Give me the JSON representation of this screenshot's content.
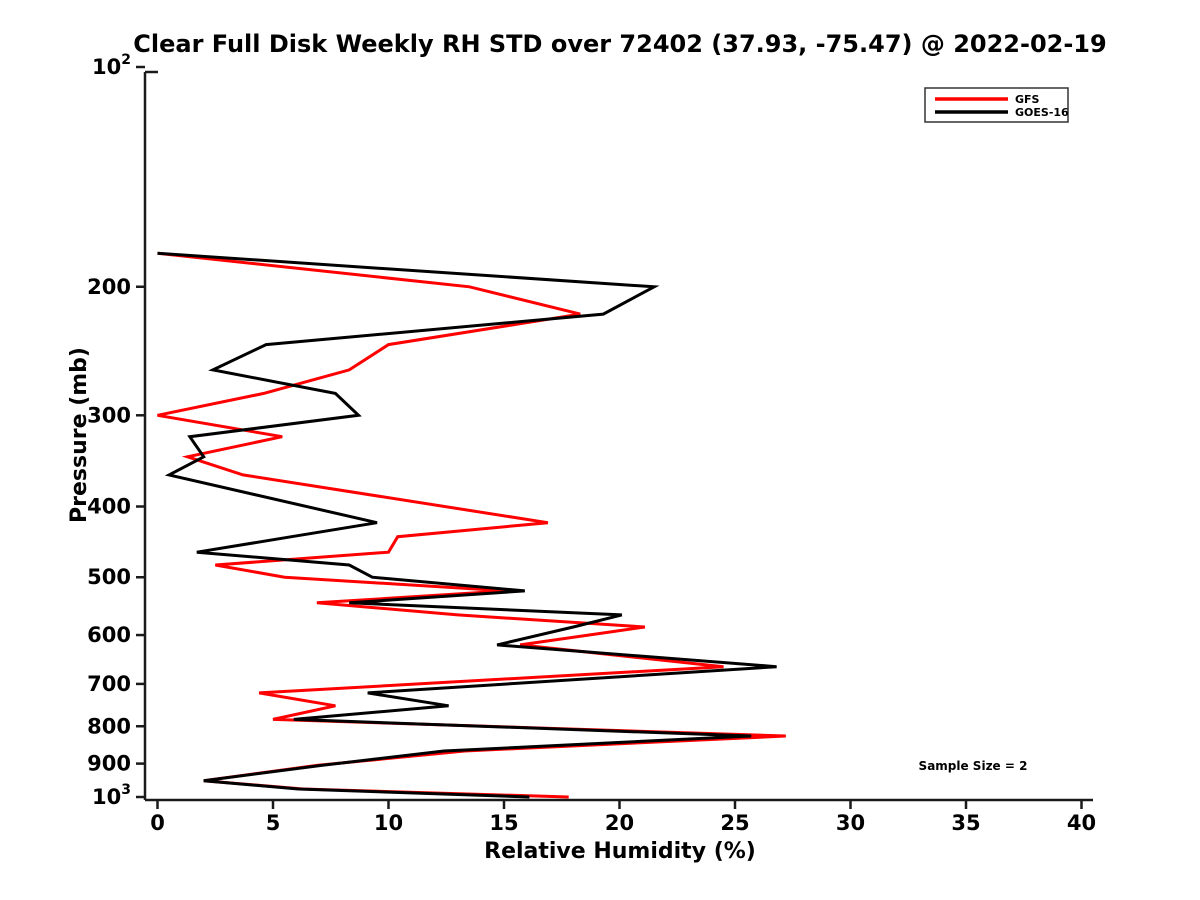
{
  "title": "Clear Full Disk Weekly RH STD over 72402 (37.93, -75.47) @ 2022-02-19",
  "annotation": "Sample Size = 2",
  "chart_data": {
    "type": "line",
    "title": "Clear Full Disk Weekly RH STD over 72402 (37.93, -75.47) @ 2022-02-19",
    "xlabel": "Relative Humidity (%)",
    "ylabel": "Pressure (mb)",
    "xlim": [
      0,
      40
    ],
    "x_ticks": [
      0,
      5,
      10,
      15,
      20,
      25,
      30,
      35,
      40
    ],
    "y_scale": "log",
    "y_inverted": true,
    "ylim": [
      100,
      1000
    ],
    "y_ticks": [
      {
        "value": 100,
        "label": "10^2"
      },
      {
        "value": 200,
        "label": "200"
      },
      {
        "value": 300,
        "label": "300"
      },
      {
        "value": 400,
        "label": "400"
      },
      {
        "value": 500,
        "label": "500"
      },
      {
        "value": 600,
        "label": "600"
      },
      {
        "value": 700,
        "label": "700"
      },
      {
        "value": 800,
        "label": "800"
      },
      {
        "value": 900,
        "label": "900"
      },
      {
        "value": 1000,
        "label": "10^3"
      }
    ],
    "grid": false,
    "legend": {
      "position": "upper right",
      "entries": [
        {
          "label": "GFS",
          "color": "#ff0000"
        },
        {
          "label": "GOES-16",
          "color": "#000000"
        }
      ]
    },
    "levels_mb": [
      180,
      200,
      218,
      240,
      260,
      280,
      300,
      321,
      342,
      362,
      421,
      440,
      462,
      481,
      500,
      522,
      542,
      563,
      585,
      619,
      663,
      720,
      750,
      783,
      825,
      865,
      905,
      950,
      975,
      1000
    ],
    "series": [
      {
        "name": "GFS",
        "color": "#ff0000",
        "values": [
          0.0,
          13.5,
          18.3,
          10.0,
          8.3,
          4.6,
          0.0,
          5.4,
          1.3,
          3.7,
          16.9,
          10.4,
          10.0,
          2.5,
          5.5,
          15.1,
          6.9,
          13.0,
          21.1,
          15.7,
          24.5,
          4.4,
          7.7,
          5.0,
          27.2,
          13.3,
          6.9,
          2.0,
          6.3,
          17.8
        ]
      },
      {
        "name": "GOES-16",
        "color": "#000000",
        "values": [
          0.0,
          21.5,
          19.3,
          4.7,
          2.4,
          7.7,
          8.7,
          1.4,
          2.0,
          0.5,
          9.5,
          5.8,
          1.7,
          8.3,
          9.3,
          15.9,
          8.3,
          20.1,
          18.0,
          14.7,
          26.8,
          9.1,
          12.6,
          5.9,
          25.7,
          12.4,
          7.1,
          2.0,
          6.1,
          16.1
        ]
      }
    ]
  }
}
